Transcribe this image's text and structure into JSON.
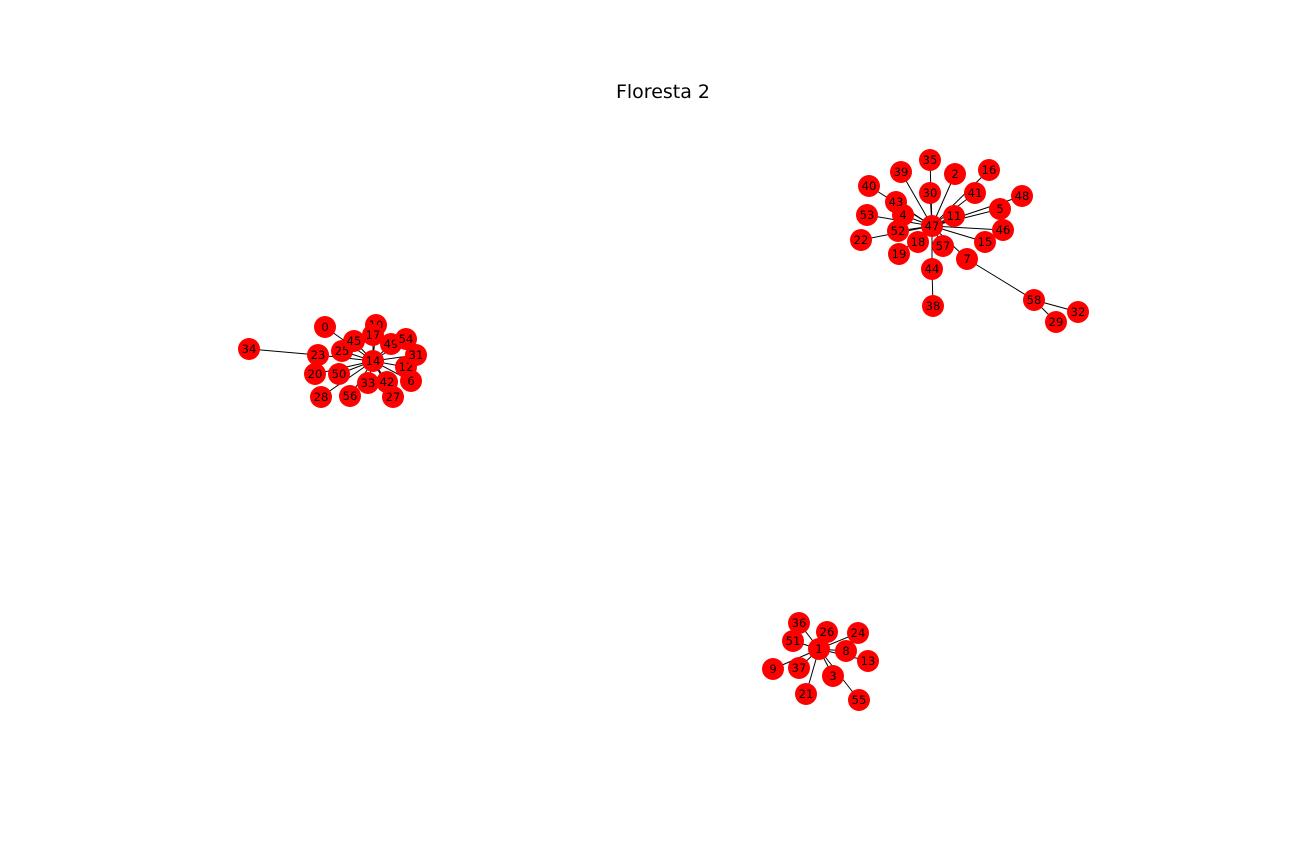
{
  "title": "Floresta 2",
  "colors": {
    "node": "#ff0000",
    "edge": "#000000",
    "label": "#000000",
    "background": "#ffffff"
  },
  "nodes": [
    "0",
    "1",
    "2",
    "3",
    "4",
    "5",
    "6",
    "7",
    "8",
    "9",
    "10",
    "11",
    "12",
    "13",
    "14",
    "15",
    "16",
    "17",
    "18",
    "19",
    "20",
    "21",
    "22",
    "23",
    "24",
    "25",
    "26",
    "27",
    "28",
    "29",
    "30",
    "31",
    "32",
    "33",
    "34",
    "35",
    "36",
    "37",
    "38",
    "39",
    "40",
    "41",
    "42",
    "43",
    "44",
    "45",
    "46",
    "47",
    "48",
    "49",
    "50",
    "51",
    "52",
    "53",
    "54",
    "55",
    "56",
    "57",
    "58"
  ],
  "edges": [
    [
      "14",
      "0"
    ],
    [
      "14",
      "10"
    ],
    [
      "14",
      "17"
    ],
    [
      "14",
      "45"
    ],
    [
      "14",
      "54"
    ],
    [
      "14",
      "49"
    ],
    [
      "14",
      "31"
    ],
    [
      "14",
      "12"
    ],
    [
      "14",
      "6"
    ],
    [
      "14",
      "42"
    ],
    [
      "14",
      "27"
    ],
    [
      "14",
      "33"
    ],
    [
      "14",
      "56"
    ],
    [
      "14",
      "50"
    ],
    [
      "14",
      "20"
    ],
    [
      "14",
      "28"
    ],
    [
      "14",
      "25"
    ],
    [
      "14",
      "23"
    ],
    [
      "23",
      "34"
    ],
    [
      "47",
      "35"
    ],
    [
      "47",
      "30"
    ],
    [
      "47",
      "39"
    ],
    [
      "47",
      "2"
    ],
    [
      "47",
      "16"
    ],
    [
      "47",
      "41"
    ],
    [
      "47",
      "11"
    ],
    [
      "47",
      "48"
    ],
    [
      "47",
      "5"
    ],
    [
      "47",
      "46"
    ],
    [
      "47",
      "15"
    ],
    [
      "47",
      "7"
    ],
    [
      "47",
      "57"
    ],
    [
      "47",
      "44"
    ],
    [
      "47",
      "18"
    ],
    [
      "47",
      "19"
    ],
    [
      "47",
      "52"
    ],
    [
      "47",
      "22"
    ],
    [
      "47",
      "53"
    ],
    [
      "47",
      "4"
    ],
    [
      "47",
      "43"
    ],
    [
      "47",
      "40"
    ],
    [
      "44",
      "38"
    ],
    [
      "7",
      "58"
    ],
    [
      "58",
      "29"
    ],
    [
      "58",
      "32"
    ],
    [
      "1",
      "36"
    ],
    [
      "1",
      "51"
    ],
    [
      "1",
      "26"
    ],
    [
      "1",
      "24"
    ],
    [
      "1",
      "8"
    ],
    [
      "1",
      "13"
    ],
    [
      "1",
      "3"
    ],
    [
      "1",
      "55"
    ],
    [
      "1",
      "21"
    ],
    [
      "1",
      "37"
    ],
    [
      "1",
      "9"
    ]
  ]
}
